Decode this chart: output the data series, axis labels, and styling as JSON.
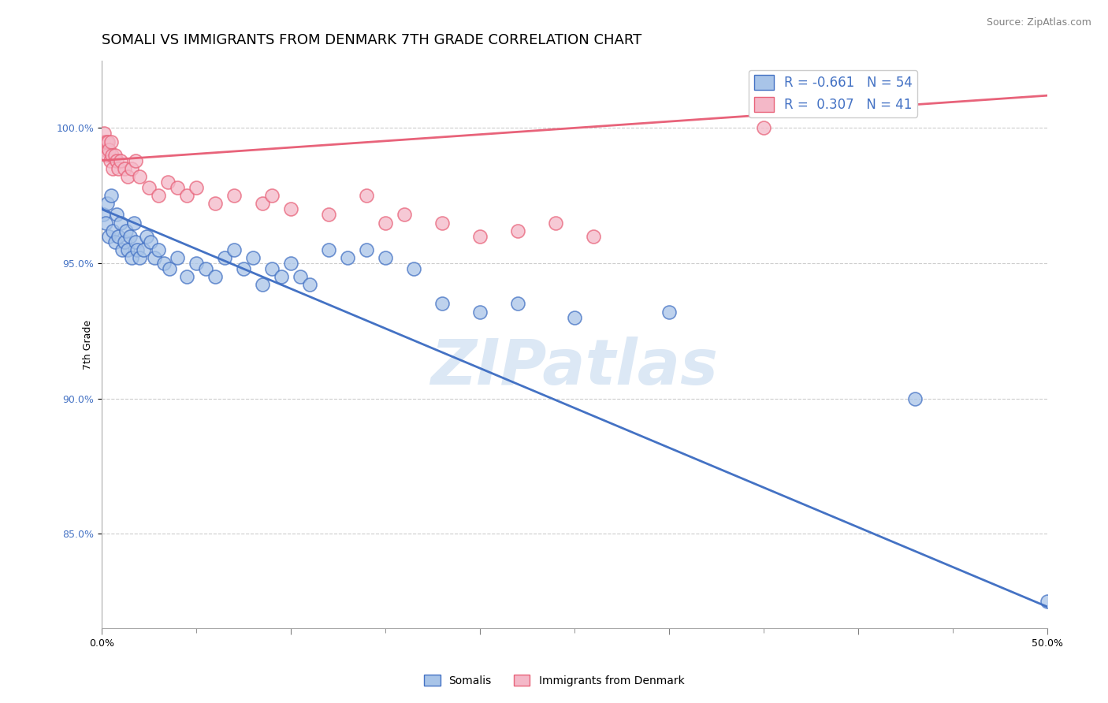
{
  "title": "SOMALI VS IMMIGRANTS FROM DENMARK 7TH GRADE CORRELATION CHART",
  "source_text": "Source: ZipAtlas.com",
  "ylabel": "7th Grade",
  "xlim": [
    0.0,
    50.0
  ],
  "ylim": [
    81.5,
    102.5
  ],
  "x_tick_positions": [
    0.0,
    10.0,
    20.0,
    30.0,
    40.0,
    50.0
  ],
  "x_tick_labels": [
    "0.0%",
    "",
    "",
    "",
    "",
    "50.0%"
  ],
  "y_tick_positions": [
    85.0,
    90.0,
    95.0,
    100.0
  ],
  "y_tick_labels": [
    "85.0%",
    "90.0%",
    "95.0%",
    "100.0%"
  ],
  "legend_line1": "R = -0.661   N = 54",
  "legend_line2": "R =  0.307   N = 41",
  "legend_labels": [
    "Somalis",
    "Immigrants from Denmark"
  ],
  "blue_scatter_x": [
    0.1,
    0.2,
    0.3,
    0.4,
    0.5,
    0.6,
    0.7,
    0.8,
    0.9,
    1.0,
    1.1,
    1.2,
    1.3,
    1.4,
    1.5,
    1.6,
    1.7,
    1.8,
    1.9,
    2.0,
    2.2,
    2.4,
    2.6,
    2.8,
    3.0,
    3.3,
    3.6,
    4.0,
    4.5,
    5.0,
    5.5,
    6.0,
    6.5,
    7.0,
    7.5,
    8.0,
    8.5,
    9.0,
    9.5,
    10.0,
    10.5,
    11.0,
    12.0,
    13.0,
    14.0,
    15.0,
    16.5,
    18.0,
    20.0,
    22.0,
    25.0,
    30.0,
    43.0,
    50.0
  ],
  "blue_scatter_y": [
    96.8,
    96.5,
    97.2,
    96.0,
    97.5,
    96.2,
    95.8,
    96.8,
    96.0,
    96.5,
    95.5,
    95.8,
    96.2,
    95.5,
    96.0,
    95.2,
    96.5,
    95.8,
    95.5,
    95.2,
    95.5,
    96.0,
    95.8,
    95.2,
    95.5,
    95.0,
    94.8,
    95.2,
    94.5,
    95.0,
    94.8,
    94.5,
    95.2,
    95.5,
    94.8,
    95.2,
    94.2,
    94.8,
    94.5,
    95.0,
    94.5,
    94.2,
    95.5,
    95.2,
    95.5,
    95.2,
    94.8,
    93.5,
    93.2,
    93.5,
    93.0,
    93.2,
    90.0,
    82.5
  ],
  "pink_scatter_x": [
    0.1,
    0.15,
    0.2,
    0.25,
    0.3,
    0.35,
    0.4,
    0.45,
    0.5,
    0.55,
    0.6,
    0.7,
    0.8,
    0.9,
    1.0,
    1.2,
    1.4,
    1.6,
    1.8,
    2.0,
    2.5,
    3.0,
    3.5,
    4.0,
    4.5,
    5.0,
    6.0,
    7.0,
    8.5,
    9.0,
    10.0,
    12.0,
    14.0,
    15.0,
    16.0,
    18.0,
    20.0,
    22.0,
    24.0,
    26.0,
    35.0
  ],
  "pink_scatter_y": [
    99.5,
    99.8,
    99.2,
    99.5,
    99.0,
    99.5,
    99.2,
    98.8,
    99.5,
    99.0,
    98.5,
    99.0,
    98.8,
    98.5,
    98.8,
    98.5,
    98.2,
    98.5,
    98.8,
    98.2,
    97.8,
    97.5,
    98.0,
    97.8,
    97.5,
    97.8,
    97.2,
    97.5,
    97.2,
    97.5,
    97.0,
    96.8,
    97.5,
    96.5,
    96.8,
    96.5,
    96.0,
    96.2,
    96.5,
    96.0,
    100.0
  ],
  "blue_line_x": [
    0.0,
    50.0
  ],
  "blue_line_y": [
    97.0,
    82.3
  ],
  "pink_line_x": [
    0.0,
    50.0
  ],
  "pink_line_y": [
    98.8,
    101.2
  ],
  "blue_color": "#4472c4",
  "pink_color": "#e8637a",
  "blue_scatter_color": "#a8c4e8",
  "pink_scatter_color": "#f4b8c8",
  "watermark_color": "#dce8f5",
  "title_fontsize": 13,
  "axis_label_fontsize": 9,
  "tick_fontsize": 9,
  "source_fontsize": 9
}
